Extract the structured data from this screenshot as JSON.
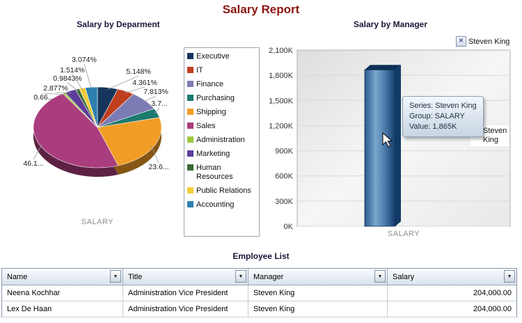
{
  "page": {
    "title": "Salary Report"
  },
  "bar_ui": {
    "toggle_label": "Steven King",
    "tooltip": {
      "series": "Series: Steven King",
      "group": "Group: SALARY",
      "value": "Value: 1,865K"
    },
    "legend_line1": "Steven",
    "legend_line2": "King"
  },
  "chart_data": [
    {
      "type": "pie",
      "title": "Salary by Deparment",
      "series_label": "SALARY",
      "legend_position": "right",
      "slices": [
        {
          "label": "Executive",
          "pct": 5.148,
          "display": "5.148%",
          "color": "#16355c"
        },
        {
          "label": "IT",
          "pct": 4.361,
          "display": "4.361%",
          "color": "#bf3e1d"
        },
        {
          "label": "Finance",
          "pct": 7.813,
          "display": "7.813%",
          "color": "#7c7cb4"
        },
        {
          "label": "Purchasing",
          "pct": 3.76,
          "display": "3.7...",
          "color": "#1d7a6e"
        },
        {
          "label": "Shipping",
          "pct": 23.68,
          "display": "23.6...",
          "color": "#f29d25"
        },
        {
          "label": "Sales",
          "pct": 46.17,
          "display": "46.1...",
          "color": "#aa3d7d"
        },
        {
          "label": "Administration",
          "pct": 0.663,
          "display": "0.66...",
          "color": "#9dc93d"
        },
        {
          "label": "Marketing",
          "pct": 2.877,
          "display": "2.877%",
          "color": "#5c3d99"
        },
        {
          "label": "Human Resources",
          "pct": 0.9843,
          "display": "0.9843%",
          "color": "#3a6b35"
        },
        {
          "label": "Public Relations",
          "pct": 1.514,
          "display": "1.514%",
          "color": "#f2cc3a"
        },
        {
          "label": "Accounting",
          "pct": 3.074,
          "display": "3.074%",
          "color": "#2e7fb0"
        }
      ]
    },
    {
      "type": "bar",
      "title": "Salary by Manager",
      "categories": [
        "SALARY"
      ],
      "xlabel": "SALARY",
      "ylim": [
        0,
        2100
      ],
      "y_ticks": [
        "2,100K",
        "1,800K",
        "1,500K",
        "1,200K",
        "900K",
        "600K",
        "300K",
        "0K"
      ],
      "series": [
        {
          "name": "Steven King",
          "values": [
            1865
          ],
          "display_value": "1,865K",
          "color": "#2d5f92"
        }
      ],
      "legend_position": "right"
    },
    {
      "type": "table",
      "title": "Employee List",
      "columns": [
        "Name",
        "Title",
        "Manager",
        "Salary"
      ],
      "rows": [
        [
          "Neena Kochhar",
          "Administration Vice President",
          "Steven King",
          "204,000.00"
        ],
        [
          "Lex De Haan",
          "Administration Vice President",
          "Steven King",
          "204,000.00"
        ]
      ]
    }
  ]
}
